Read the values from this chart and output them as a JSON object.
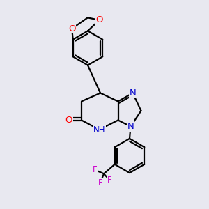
{
  "bg_color": "#e8e8f0",
  "bond_color": "#000000",
  "bond_width": 1.6,
  "atom_colors": {
    "O": "#ff0000",
    "N": "#0000cc",
    "F": "#cc00cc",
    "C": "#000000"
  },
  "font_size": 8.5,
  "figsize": [
    3.0,
    3.0
  ],
  "dpi": 100
}
